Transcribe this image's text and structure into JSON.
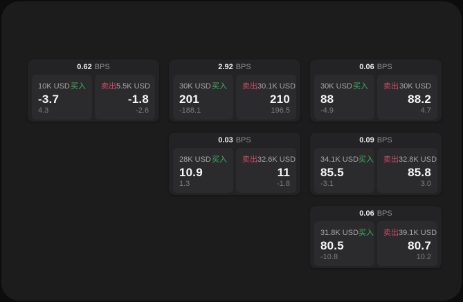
{
  "labels": {
    "bps_unit": "BPS",
    "buy": "买入",
    "sell": "卖出"
  },
  "colors": {
    "buy": "#3cb45e",
    "sell": "#cd4b64",
    "panel_bg": "#1c1c1d",
    "card_bg": "#232326",
    "subpanel_bg": "#2b2b2e"
  },
  "cards": [
    {
      "row": 1,
      "col": 1,
      "bps": "0.62",
      "buy": {
        "notional": "10K USD",
        "main": "-3.7",
        "sub": "4.3"
      },
      "sell": {
        "notional": "5.5K USD",
        "main": "-1.8",
        "sub": "-2.6"
      }
    },
    {
      "row": 1,
      "col": 2,
      "bps": "2.92",
      "buy": {
        "notional": "30K USD",
        "main": "201",
        "sub": "-188.1"
      },
      "sell": {
        "notional": "30.1K USD",
        "main": "210",
        "sub": "196.5"
      }
    },
    {
      "row": 1,
      "col": 3,
      "bps": "0.06",
      "buy": {
        "notional": "30K USD",
        "main": "88",
        "sub": "-4.9"
      },
      "sell": {
        "notional": "30K USD",
        "main": "88.2",
        "sub": "4.7"
      }
    },
    {
      "row": 2,
      "col": 2,
      "bps": "0.03",
      "buy": {
        "notional": "28K USD",
        "main": "10.9",
        "sub": "1.3"
      },
      "sell": {
        "notional": "32.6K USD",
        "main": "11",
        "sub": "-1.8"
      }
    },
    {
      "row": 2,
      "col": 3,
      "bps": "0.09",
      "buy": {
        "notional": "34.1K USD",
        "main": "85.5",
        "sub": "-3.1"
      },
      "sell": {
        "notional": "32.8K USD",
        "main": "85.8",
        "sub": "3.0"
      }
    },
    {
      "row": 3,
      "col": 3,
      "bps": "0.06",
      "buy": {
        "notional": "31.8K USD",
        "main": "80.5",
        "sub": "-10.8"
      },
      "sell": {
        "notional": "39.1K USD",
        "main": "80.7",
        "sub": "10.2"
      }
    }
  ]
}
